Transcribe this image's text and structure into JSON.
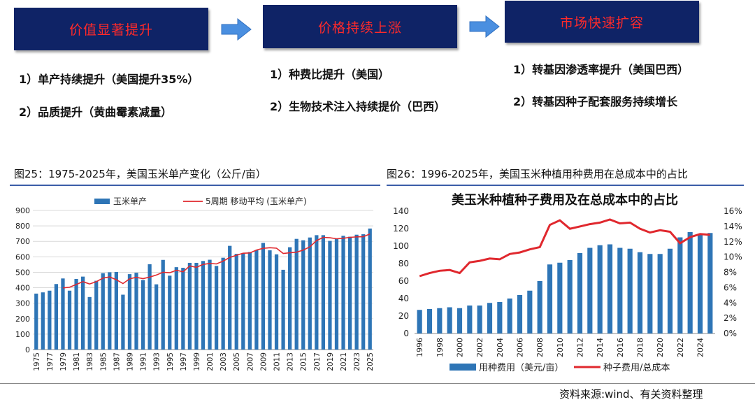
{
  "header": {
    "boxes": [
      {
        "label": "价值显著提升"
      },
      {
        "label": "价格持续上涨"
      },
      {
        "label": "市场快速扩容"
      }
    ],
    "bullets": [
      [
        "1）单产持续提升（美国提升35%）",
        "2）品质提升（黄曲霉素减量）"
      ],
      [
        "1）种费比提升（美国）",
        "2）生物技术注入持续提价（巴西）"
      ],
      [
        "1）转基因渗透率提升（美国巴西）",
        "2）转基因种子配套服务持续增长"
      ]
    ]
  },
  "captions": {
    "left": "图25：1975-2025年，美国玉米单产变化（公斤/亩）",
    "right": "图26：1996-2025年，美国玉米种植用种费用在总成本中的占比"
  },
  "source": "资料来源:wind、有关资料整理",
  "colors": {
    "bar": "#2e75b6",
    "line": "#e0282e",
    "box_bg": "#0f2366",
    "box_text": "#ff2a2a"
  },
  "chart_data": [
    {
      "type": "bar",
      "title": "",
      "x": [
        1975,
        1976,
        1977,
        1978,
        1979,
        1980,
        1981,
        1982,
        1983,
        1984,
        1985,
        1986,
        1987,
        1988,
        1989,
        1990,
        1991,
        1992,
        1993,
        1994,
        1995,
        1996,
        1997,
        1998,
        1999,
        2000,
        2001,
        2002,
        2003,
        2004,
        2005,
        2006,
        2007,
        2008,
        2009,
        2010,
        2011,
        2012,
        2013,
        2014,
        2015,
        2016,
        2017,
        2018,
        2019,
        2020,
        2021,
        2022,
        2023,
        2024,
        2025
      ],
      "x_tick_labels": [
        "1975",
        "1977",
        "1979",
        "1981",
        "1983",
        "1985",
        "1987",
        "1989",
        "1991",
        "1993",
        "1995",
        "1997",
        "1999",
        "2001",
        "2003",
        "2005",
        "2007",
        "2009",
        "2011",
        "2013",
        "2015",
        "2017",
        "2019",
        "2021",
        "2023",
        "2025"
      ],
      "ylim": [
        0,
        900
      ],
      "y_ticks": [
        0,
        100,
        200,
        300,
        400,
        500,
        600,
        700,
        800,
        900
      ],
      "grid": true,
      "legend": "top",
      "series": [
        {
          "name": "玉米单产",
          "type": "bar",
          "values": [
            362,
            370,
            381,
            424,
            460,
            381,
            457,
            472,
            340,
            445,
            494,
            500,
            502,
            355,
            488,
            497,
            450,
            552,
            422,
            580,
            478,
            533,
            529,
            561,
            561,
            573,
            581,
            541,
            594,
            671,
            619,
            621,
            631,
            643,
            690,
            642,
            616,
            516,
            662,
            716,
            707,
            725,
            740,
            740,
            703,
            717,
            736,
            730,
            743,
            746,
            783
          ]
        },
        {
          "name": "5周期 移动平均 (玉米单产)",
          "type": "line",
          "values": [
            null,
            null,
            null,
            null,
            399,
            403,
            421,
            439,
            424,
            439,
            462,
            470,
            452,
            427,
            458,
            467,
            459,
            469,
            482,
            500,
            497,
            513,
            503,
            541,
            532,
            551,
            557,
            554,
            572,
            596,
            610,
            623,
            625,
            644,
            655,
            659,
            656,
            622,
            626,
            630,
            643,
            665,
            705,
            726,
            723,
            717,
            720,
            726,
            729,
            730,
            748
          ]
        }
      ]
    },
    {
      "type": "bar",
      "title": "美玉米种植种子费用及在总成本中的占比",
      "x": [
        1996,
        1997,
        1998,
        1999,
        2000,
        2001,
        2002,
        2003,
        2004,
        2005,
        2006,
        2007,
        2008,
        2009,
        2010,
        2011,
        2012,
        2013,
        2014,
        2015,
        2016,
        2017,
        2018,
        2019,
        2020,
        2021,
        2022,
        2023,
        2024,
        2025
      ],
      "x_tick_labels": [
        "1996",
        "1998",
        "2000",
        "2002",
        "2004",
        "2006",
        "2008",
        "2010",
        "2012",
        "2014",
        "2016",
        "2018",
        "2020",
        "2022",
        "2024"
      ],
      "ylim_left": [
        0,
        140
      ],
      "y_ticks_left": [
        0,
        20,
        40,
        60,
        80,
        100,
        120,
        140
      ],
      "ylim_right": [
        0,
        16
      ],
      "y_ticks_right": [
        "0%",
        "2%",
        "4%",
        "6%",
        "8%",
        "10%",
        "12%",
        "14%",
        "16%"
      ],
      "grid": false,
      "legend": "bottom",
      "series": [
        {
          "name": "用种费用（美元/亩）",
          "type": "bar",
          "axis": "left",
          "values": [
            27,
            28,
            29,
            30,
            29,
            32,
            32,
            35,
            36,
            40,
            44,
            49,
            60,
            79,
            81,
            84,
            92,
            98,
            101,
            102,
            98,
            97,
            93,
            91,
            91,
            97,
            110,
            116,
            114,
            115
          ]
        },
        {
          "name": "种子费用/总成本",
          "type": "line",
          "axis": "right",
          "values": [
            7.5,
            7.9,
            8.2,
            8.3,
            7.9,
            9.3,
            9.5,
            9.8,
            9.7,
            10.4,
            10.6,
            11.0,
            11.3,
            14.2,
            14.8,
            13.7,
            14.0,
            14.3,
            14.5,
            14.9,
            14.4,
            14.5,
            13.7,
            13.2,
            13.5,
            13.3,
            11.8,
            12.6,
            13.0,
            12.9
          ]
        }
      ]
    }
  ]
}
